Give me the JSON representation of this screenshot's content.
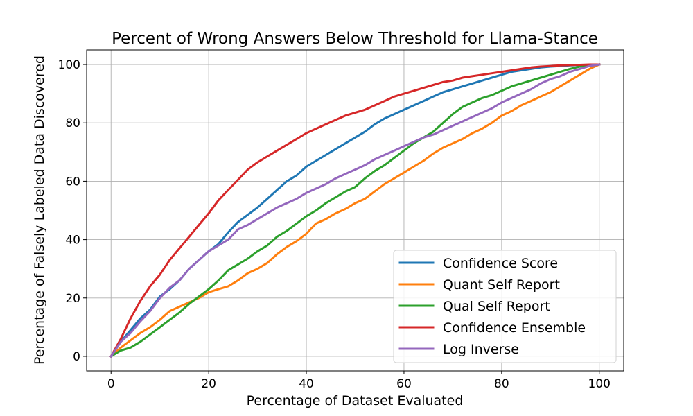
{
  "chart_data": {
    "type": "line",
    "title": "Percent of Wrong Answers Below Threshold for Llama-Stance",
    "xlabel": "Percentage of Dataset Evaluated",
    "ylabel": "Percentage of Falsely Labeled Data Discovered",
    "xlim": [
      -5,
      105
    ],
    "ylim": [
      -5,
      105
    ],
    "xticks": [
      0,
      20,
      40,
      60,
      80,
      100
    ],
    "yticks": [
      0,
      20,
      40,
      60,
      80,
      100
    ],
    "grid": true,
    "legend_position": "lower-right",
    "series": [
      {
        "name": "Confidence Score",
        "color": "#1f77b4",
        "x": [
          0,
          2,
          4,
          6,
          8,
          10,
          12,
          14,
          16,
          18,
          20,
          22,
          24,
          26,
          28,
          30,
          32,
          34,
          36,
          38,
          40,
          42,
          44,
          46,
          48,
          50,
          52,
          54,
          56,
          58,
          60,
          62,
          64,
          66,
          68,
          70,
          72,
          74,
          76,
          78,
          80,
          82,
          84,
          86,
          88,
          90,
          92,
          94,
          96,
          98,
          100
        ],
        "y": [
          0,
          5,
          9,
          13,
          16,
          20.5,
          23,
          26,
          30,
          33,
          36,
          38.5,
          42.5,
          46,
          48.5,
          51,
          54,
          57,
          60,
          62,
          65,
          67,
          69,
          71,
          73,
          75,
          77,
          79.5,
          81.5,
          83,
          84.5,
          86,
          87.5,
          89,
          90.5,
          91.5,
          92.5,
          93.5,
          94.5,
          95.5,
          96.5,
          97.5,
          98,
          98.5,
          99,
          99.3,
          99.5,
          99.7,
          99.8,
          99.9,
          100
        ]
      },
      {
        "name": "Quant Self Report",
        "color": "#ff7f0e",
        "x": [
          0,
          2,
          4,
          6,
          8,
          10,
          12,
          14,
          16,
          18,
          20,
          22,
          24,
          26,
          28,
          30,
          32,
          34,
          36,
          38,
          40,
          42,
          44,
          46,
          48,
          50,
          52,
          54,
          56,
          58,
          60,
          62,
          64,
          66,
          68,
          70,
          72,
          74,
          76,
          78,
          80,
          82,
          84,
          86,
          88,
          90,
          92,
          94,
          96,
          98,
          100
        ],
        "y": [
          0,
          3,
          5.5,
          8,
          10,
          12.5,
          15.5,
          17,
          18.5,
          20,
          22,
          23,
          24,
          26,
          28.5,
          30,
          32,
          35,
          37.5,
          39.5,
          42,
          45.5,
          47,
          49,
          50.5,
          52.5,
          54,
          56.5,
          59,
          61,
          63,
          65,
          67,
          69.5,
          71.5,
          73,
          74.5,
          76.5,
          78,
          80,
          82.5,
          84,
          86,
          87.5,
          89,
          90.5,
          92.5,
          94.5,
          96.5,
          98.5,
          100
        ]
      },
      {
        "name": "Qual Self Report",
        "color": "#2ca02c",
        "x": [
          0,
          2,
          4,
          6,
          8,
          10,
          12,
          14,
          16,
          18,
          20,
          22,
          24,
          26,
          28,
          30,
          32,
          34,
          36,
          38,
          40,
          42,
          44,
          46,
          48,
          50,
          52,
          54,
          56,
          58,
          60,
          62,
          64,
          66,
          68,
          70,
          72,
          74,
          76,
          78,
          80,
          82,
          84,
          86,
          88,
          90,
          92,
          94,
          96,
          98,
          100
        ],
        "y": [
          0,
          2,
          3,
          5,
          7.5,
          10,
          12.5,
          15,
          18,
          20.5,
          23,
          26,
          29.5,
          31.5,
          33.5,
          36,
          38,
          41,
          43,
          45.5,
          48,
          50,
          52.5,
          54.5,
          56.5,
          58,
          61,
          63.5,
          65.5,
          68,
          70.5,
          73,
          75,
          77,
          80,
          83,
          85.5,
          87,
          88.5,
          89.5,
          91,
          92.5,
          93.5,
          94.5,
          95.5,
          96.5,
          97.5,
          98.5,
          99.3,
          99.7,
          100
        ]
      },
      {
        "name": "Confidence Ensemble",
        "color": "#d62728",
        "x": [
          0,
          2,
          4,
          6,
          8,
          10,
          12,
          14,
          16,
          18,
          20,
          22,
          24,
          26,
          28,
          30,
          32,
          34,
          36,
          38,
          40,
          42,
          44,
          46,
          48,
          50,
          52,
          54,
          56,
          58,
          60,
          62,
          64,
          66,
          68,
          70,
          72,
          74,
          76,
          78,
          80,
          82,
          84,
          86,
          88,
          90,
          92,
          94,
          96,
          98,
          100
        ],
        "y": [
          0,
          6,
          13,
          19,
          24,
          28,
          33,
          37,
          41,
          45,
          49,
          53.5,
          57,
          60.5,
          64,
          66.5,
          68.5,
          70.5,
          72.5,
          74.5,
          76.5,
          78,
          79.5,
          81,
          82.5,
          83.5,
          84.5,
          86,
          87.5,
          89,
          90,
          91,
          92,
          93,
          94,
          94.5,
          95.5,
          96,
          96.5,
          97,
          97.5,
          98,
          98.5,
          99,
          99.3,
          99.5,
          99.7,
          99.8,
          99.9,
          100,
          100
        ]
      },
      {
        "name": "Log Inverse",
        "color": "#9467bd",
        "x": [
          0,
          2,
          4,
          6,
          8,
          10,
          12,
          14,
          16,
          18,
          20,
          22,
          24,
          26,
          28,
          30,
          32,
          34,
          36,
          38,
          40,
          42,
          44,
          46,
          48,
          50,
          52,
          54,
          56,
          58,
          60,
          62,
          64,
          66,
          68,
          70,
          72,
          74,
          76,
          78,
          80,
          82,
          84,
          86,
          88,
          90,
          92,
          94,
          96,
          98,
          100
        ],
        "y": [
          0,
          5,
          8,
          12,
          15.5,
          20,
          23.5,
          26,
          30,
          33,
          36,
          38,
          40,
          43.5,
          45,
          47,
          49,
          51,
          52.5,
          54,
          56,
          57.5,
          59,
          61,
          62.5,
          64,
          65.5,
          67.5,
          69,
          70.5,
          72,
          73.5,
          75,
          76,
          77.5,
          79,
          80.5,
          82,
          83.5,
          85,
          87,
          88.5,
          90,
          91.5,
          93.5,
          95,
          96,
          97.5,
          98.5,
          99.5,
          100
        ]
      }
    ]
  }
}
